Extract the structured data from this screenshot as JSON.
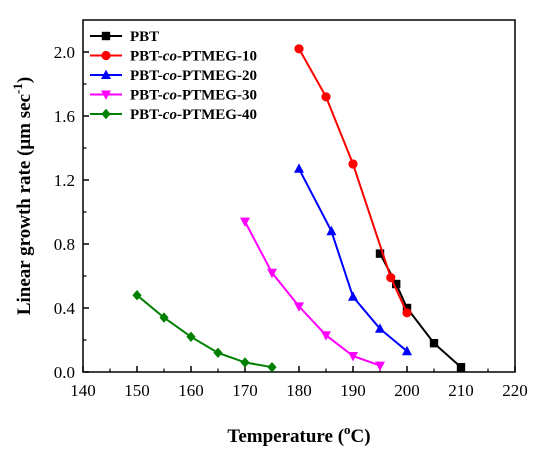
{
  "chart_data": {
    "type": "line",
    "xlabel": "Temperature (°C)",
    "ylabel": "Linear growth rate (μm sec⁻¹)",
    "xlim": [
      140,
      220
    ],
    "ylim": [
      0.0,
      2.2
    ],
    "x_ticks": [
      "140",
      "150",
      "160",
      "170",
      "180",
      "190",
      "200",
      "210",
      "220"
    ],
    "y_ticks": [
      "0.0",
      "0.4",
      "0.8",
      "1.2",
      "1.6",
      "2.0"
    ],
    "grid": false,
    "legend_position": "top-left",
    "series": [
      {
        "name": "PBT",
        "color": "#000000",
        "marker": "square",
        "points": [
          [
            195,
            0.74
          ],
          [
            198,
            0.55
          ],
          [
            200,
            0.4
          ],
          [
            205,
            0.18
          ],
          [
            210,
            0.03
          ]
        ]
      },
      {
        "name": "PBT-co-PTMEG-10",
        "color": "#ff0000",
        "marker": "circle",
        "points": [
          [
            180,
            2.02
          ],
          [
            185,
            1.72
          ],
          [
            190,
            1.3
          ],
          [
            197,
            0.59
          ],
          [
            200,
            0.37
          ]
        ]
      },
      {
        "name": "PBT-co-PTMEG-20",
        "color": "#0000ff",
        "marker": "triangle-up",
        "points": [
          [
            180,
            1.27
          ],
          [
            186,
            0.88
          ],
          [
            190,
            0.47
          ],
          [
            195,
            0.27
          ],
          [
            200,
            0.13
          ]
        ]
      },
      {
        "name": "PBT-co-PTMEG-30",
        "color": "#ff00ff",
        "marker": "triangle-down",
        "points": [
          [
            170,
            0.94
          ],
          [
            175,
            0.62
          ],
          [
            180,
            0.41
          ],
          [
            185,
            0.23
          ],
          [
            190,
            0.1
          ],
          [
            195,
            0.04
          ]
        ]
      },
      {
        "name": "PBT-co-PTMEG-40",
        "color": "#008000",
        "marker": "diamond",
        "points": [
          [
            150,
            0.48
          ],
          [
            155,
            0.34
          ],
          [
            160,
            0.22
          ],
          [
            165,
            0.12
          ],
          [
            170,
            0.06
          ],
          [
            175,
            0.03
          ]
        ]
      }
    ]
  }
}
